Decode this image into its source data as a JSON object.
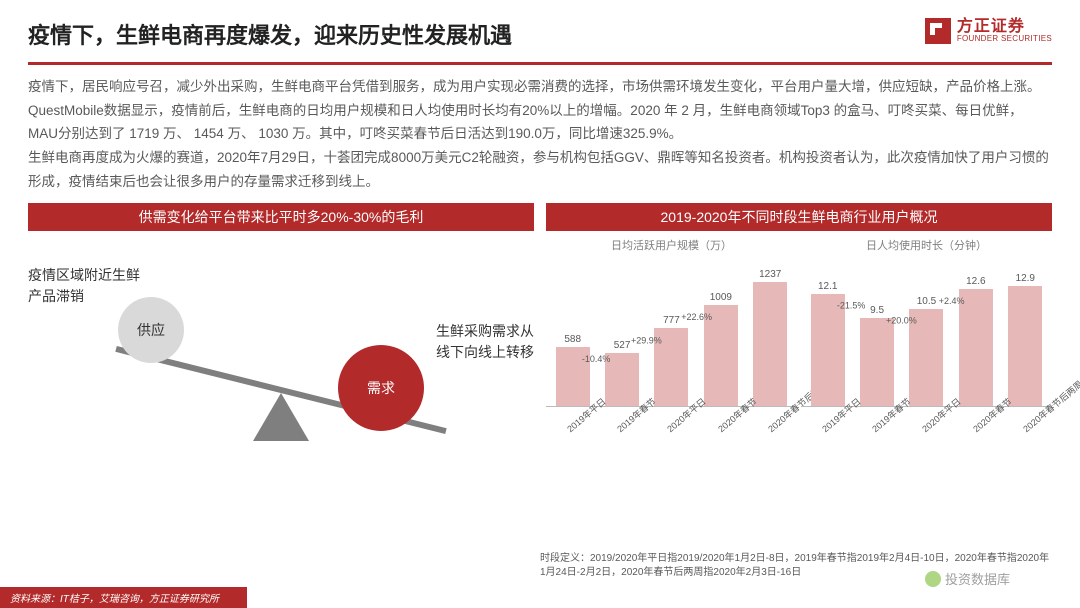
{
  "header": {
    "title": "疫情下，生鲜电商再度爆发，迎来历史性发展机遇",
    "logo_cn": "方正证券",
    "logo_en": "FOUNDER SECURITIES",
    "logo_color": "#b22a2a"
  },
  "paragraphs": [
    "疫情下，居民响应号召，减少外出采购，生鲜电商平台凭借到服务，成为用户实现必需消费的选择，市场供需环境发生变化，平台用户量大增，供应短缺，产品价格上涨。",
    "QuestMobile数据显示，疫情前后，生鲜电商的日均用户规模和日人均使用时长均有20%以上的增幅。2020 年 2 月，生鲜电商领域Top3 的盒马、叮咚买菜、每日优鲜，MAU分别达到了 1719 万、 1454 万、 1030 万。其中，叮咚买菜春节后日活达到190.0万，同比增速325.9%。",
    "生鲜电商再度成为火爆的赛道，2020年7月29日，十荟团完成8000万美元C2轮融资，参与机构包括GGV、鼎晖等知名投资者。机构投资者认为，此次疫情加快了用户习惯的形成，疫情结束后也会让很多用户的存量需求迁移到线上。"
  ],
  "left_panel": {
    "header": "供需变化给平台带来比平时多20%-30%的毛利",
    "label_left": "疫情区域附近生鲜\n产品滞销",
    "label_right": "生鲜采购需求从\n线下向线上转移",
    "supply_label": "供应",
    "demand_label": "需求",
    "beam_angle_deg": 14,
    "beam_color": "#7f7f7f",
    "fulcrum_color": "#7f7f7f",
    "supply_ball": {
      "diameter": 66,
      "fill": "#d9d9d9",
      "text_color": "#333333"
    },
    "demand_ball": {
      "diameter": 86,
      "fill": "#b22a2a",
      "text_color": "#ffffff"
    }
  },
  "right_panel": {
    "header": "2019-2020年不同时段生鲜电商行业用户概况",
    "charts": [
      {
        "title": "日均活跃用户规模（万）",
        "type": "bar",
        "bar_color": "#e6b9b8",
        "categories": [
          "2019年平日",
          "2019年春节",
          "2020年平日",
          "2020年春节",
          "2020年春节后两周"
        ],
        "values": [
          588,
          527,
          777,
          1009,
          1237
        ],
        "ylim": [
          0,
          1300
        ],
        "deltas": [
          null,
          "-10.4%",
          "+29.9%",
          "+22.6%",
          null
        ],
        "delta_arrow_color": "#c00000",
        "delta_text_color": "#595959",
        "delta_fontsize": 9,
        "label_fontsize": 10
      },
      {
        "title": "日人均使用时长（分钟）",
        "type": "bar",
        "bar_color": "#e6b9b8",
        "categories": [
          "2019年平日",
          "2019年春节",
          "2020年平日",
          "2020年春节",
          "2020年春节后两周"
        ],
        "values": [
          12.1,
          9.5,
          10.5,
          12.6,
          12.9
        ],
        "ylim": [
          0,
          14
        ],
        "deltas": [
          null,
          "-21.5%",
          "+20.0%",
          "+2.4%",
          null
        ],
        "delta_arrow_color": "#c00000",
        "delta_text_color": "#595959",
        "delta_fontsize": 9,
        "label_fontsize": 10
      }
    ],
    "footnote": "时段定义：2019/2020年平日指2019/2020年1月2日-8日，2019年春节指2019年2月4日-10日，2020年春节指2020年1月24日-2月2日，2020年春节后两周指2020年2月3日-16日"
  },
  "source": "资料来源：IT桔子，艾瑞咨询，方正证券研究所",
  "watermark": "投资数据库",
  "colors": {
    "brand_red": "#b22a2a",
    "text_gray": "#595959",
    "bar_pink": "#e6b9b8",
    "background": "#ffffff"
  }
}
